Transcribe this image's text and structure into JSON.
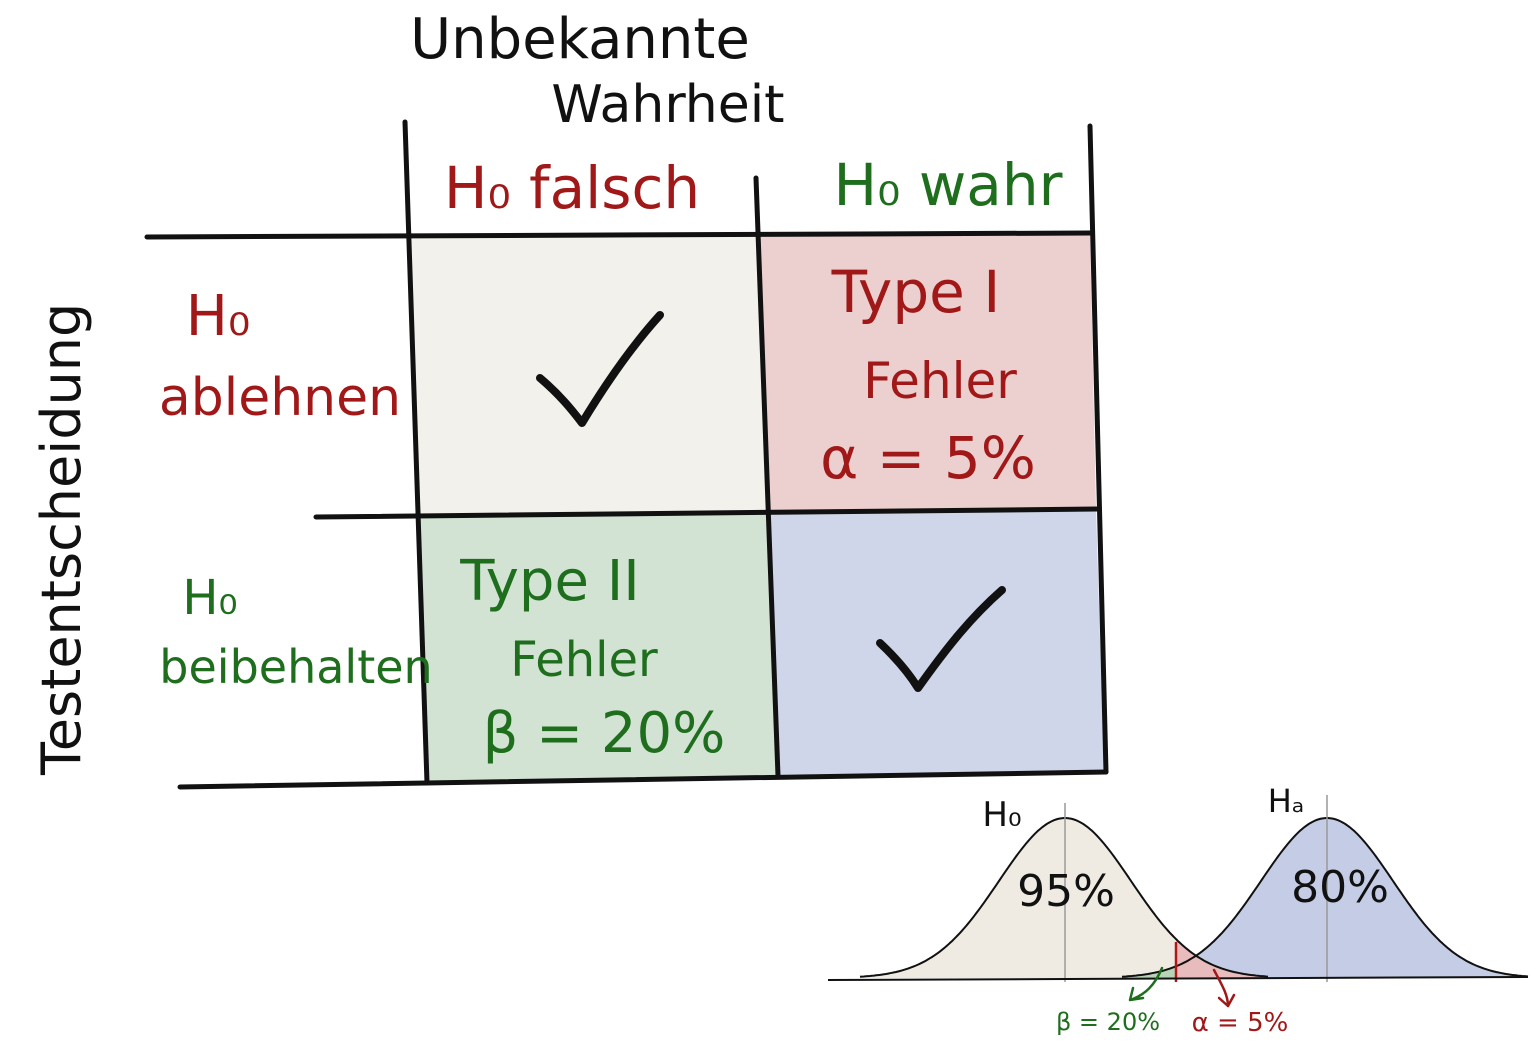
{
  "column_header": {
    "line1": "Unbekannte",
    "line2": "Wahrheit"
  },
  "row_header": "Testentscheidung",
  "columns": [
    {
      "label": "H₀ falsch",
      "color": "#a01818"
    },
    {
      "label": "H₀ wahr",
      "color": "#1e6e1e"
    }
  ],
  "rows": [
    {
      "line1": "H₀",
      "line2": "ablehnen",
      "color": "#a01818"
    },
    {
      "line1": "H₀",
      "line2": "beibehalten",
      "color": "#1e6e1e"
    }
  ],
  "cells": {
    "reject_false": {
      "fill": "#f3f1ec",
      "mark": "check-icon"
    },
    "reject_true": {
      "fill": "#eccfcf",
      "line1": "Type I",
      "line2": "Fehler",
      "line3": "α = 5%",
      "color": "#a01818"
    },
    "keep_false": {
      "fill": "#d2e3d3",
      "line1": "Type II",
      "line2": "Fehler",
      "line3": "β = 20%",
      "color": "#1e6e1e"
    },
    "keep_true": {
      "fill": "#d0d6ea",
      "mark": "check-icon"
    }
  },
  "distributions": {
    "h0": {
      "label": "H₀",
      "percent": "95%",
      "fill": "#efebe3"
    },
    "ha": {
      "label": "Hₐ",
      "percent": "80%",
      "fill": "#c4cde5"
    },
    "beta_label": "β = 20%",
    "alpha_label": "α = 5%",
    "beta_color": "#1e6e1e",
    "alpha_color": "#a01818",
    "beta_fill": "#b8d4b8",
    "alpha_fill": "#e8bcbc"
  }
}
